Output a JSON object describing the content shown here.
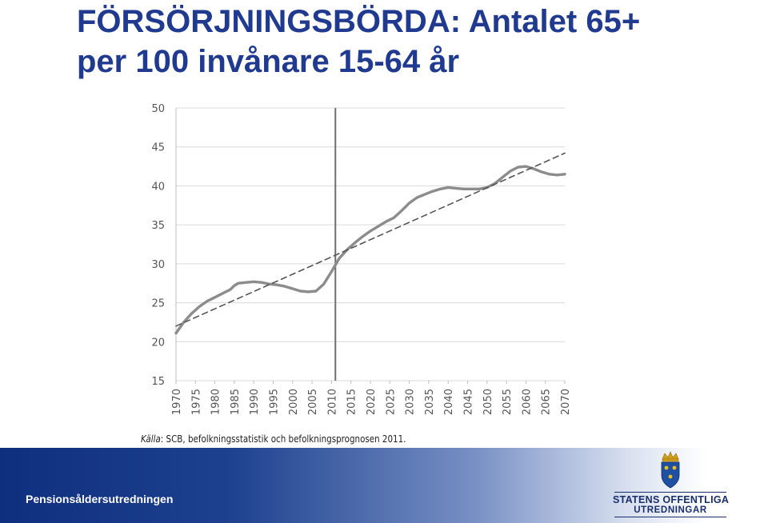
{
  "slide": {
    "title_line1": "FÖRSÖRJNINGSBÖRDA: Antalet 65+",
    "title_line2": "per 100 invånare 15-64  år",
    "source_label": "Källa",
    "source_text": ": SCB, befolkningsstatistik och befolkningsprognosen 2011.",
    "footer_name": "Pensionsåldersutredningen",
    "logo_line1": "STATENS OFFENTLIGA",
    "logo_line2": "UTREDNINGAR",
    "title_color": "#1f3a8f",
    "logo_icon": "crown-shield-icon"
  },
  "chart_data": {
    "type": "line",
    "title": "",
    "xlabel": "",
    "ylabel": "",
    "xlim": [
      1970,
      2070
    ],
    "ylim": [
      15,
      50
    ],
    "yticks": [
      15,
      20,
      25,
      30,
      35,
      40,
      45,
      50
    ],
    "xticks": [
      1970,
      1975,
      1980,
      1985,
      1990,
      1995,
      2000,
      2005,
      2010,
      2015,
      2020,
      2025,
      2030,
      2035,
      2040,
      2045,
      2050,
      2055,
      2060,
      2065,
      2070
    ],
    "grid": "horizontal",
    "vertical_marker_x": 2011,
    "series": [
      {
        "style": "solid",
        "color": "#8c8c8c",
        "x": [
          1970,
          1972,
          1974,
          1976,
          1978,
          1980,
          1982,
          1984,
          1985,
          1986,
          1988,
          1990,
          1992,
          1994,
          1996,
          1998,
          2000,
          2002,
          2004,
          2006,
          2008,
          2010,
          2012,
          2014,
          2016,
          2018,
          2020,
          2022,
          2024,
          2026,
          2028,
          2030,
          2032,
          2034,
          2036,
          2038,
          2040,
          2042,
          2044,
          2046,
          2048,
          2050,
          2052,
          2054,
          2056,
          2058,
          2060,
          2062,
          2064,
          2066,
          2068,
          2070
        ],
        "y": [
          21.1,
          22.5,
          23.6,
          24.5,
          25.2,
          25.7,
          26.2,
          26.7,
          27.2,
          27.5,
          27.6,
          27.7,
          27.6,
          27.4,
          27.3,
          27.1,
          26.8,
          26.5,
          26.4,
          26.5,
          27.4,
          29.0,
          30.7,
          31.8,
          32.7,
          33.5,
          34.2,
          34.8,
          35.4,
          35.9,
          36.8,
          37.8,
          38.5,
          38.9,
          39.3,
          39.6,
          39.8,
          39.7,
          39.6,
          39.6,
          39.6,
          39.8,
          40.3,
          41.1,
          41.9,
          42.4,
          42.5,
          42.2,
          41.8,
          41.5,
          41.4,
          41.5
        ]
      },
      {
        "style": "dashed",
        "color": "#555555",
        "x": [
          1970,
          2070
        ],
        "y": [
          22.0,
          44.2
        ]
      }
    ]
  }
}
